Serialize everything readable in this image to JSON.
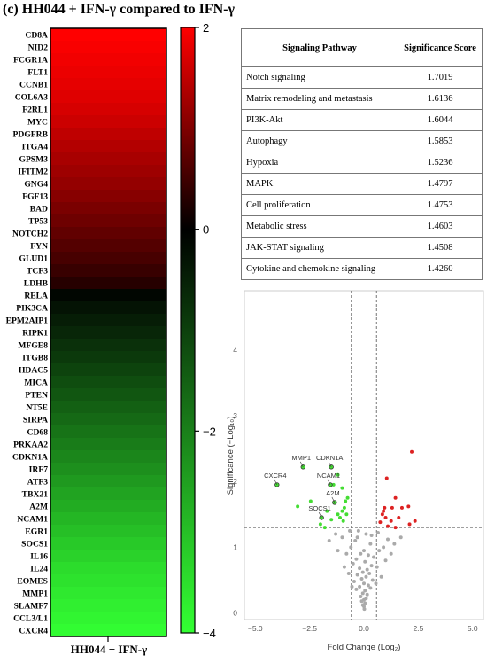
{
  "panel_title": "(c) HH044 + IFN-γ compared to IFN-γ",
  "chart_data": [
    {
      "type": "heatmap",
      "column_label": "HH044 + IFN-γ",
      "rows": [
        "CD8A",
        "NID2",
        "FCGR1A",
        "FLT1",
        "CCNB1",
        "COL6A3",
        "F2RL1",
        "MYC",
        "PDGFRB",
        "ITGA4",
        "GPSM3",
        "IFITM2",
        "GNG4",
        "FGF13",
        "BAD",
        "TP53",
        "NOTCH2",
        "FYN",
        "GLUD1",
        "TCF3",
        "LDHB",
        "RELA",
        "PIK3CA",
        "EPM2AIP1",
        "RIPK1",
        "MFGE8",
        "ITGB8",
        "HDAC5",
        "MICA",
        "PTEN",
        "NT5E",
        "SIRPA",
        "CD68",
        "PRKAA2",
        "CDKN1A",
        "IRF7",
        "ATF3",
        "TBX21",
        "A2M",
        "NCAM1",
        "EGR1",
        "SOCS1",
        "IL16",
        "IL24",
        "EOMES",
        "MMP1",
        "SLAMF7",
        "CCL3/L1",
        "CXCR4"
      ],
      "values": [
        2.0,
        1.95,
        1.9,
        1.85,
        1.8,
        1.75,
        1.68,
        1.6,
        1.5,
        1.4,
        1.32,
        1.24,
        1.16,
        1.06,
        0.96,
        0.86,
        0.76,
        0.66,
        0.56,
        0.44,
        0.3,
        -0.1,
        -0.3,
        -0.45,
        -0.6,
        -0.75,
        -0.9,
        -1.05,
        -1.2,
        -1.35,
        -1.5,
        -1.65,
        -1.8,
        -1.95,
        -2.1,
        -2.25,
        -2.4,
        -2.55,
        -2.7,
        -2.85,
        -3.0,
        -3.15,
        -3.3,
        -3.45,
        -3.55,
        -3.65,
        -3.75,
        -3.85,
        -3.95
      ],
      "colorbar": {
        "min": -4,
        "max": 2,
        "ticks": [
          2,
          0,
          -2,
          -4
        ],
        "low_color": "#33ff33",
        "mid_color": "#000000",
        "high_color": "#ff0000"
      }
    },
    {
      "type": "scatter",
      "xlabel": "Fold Change (Log₂)",
      "ylabel": "Significance (−Log₁₀)",
      "xlim": [
        -5.5,
        5.5
      ],
      "ylim": [
        -0.1,
        4.9
      ],
      "xticks": [
        -5.0,
        -2.5,
        0.0,
        2.5,
        5.0
      ],
      "yticks": [
        0,
        1,
        2,
        3,
        4
      ],
      "thresholds": {
        "x": [
          -0.58,
          0.58
        ],
        "y": 1.3
      },
      "colors": {
        "up": "#dd2222",
        "down": "#44dd33",
        "ns": "#aaaaaa"
      },
      "labeled_points": [
        {
          "label": "MMP1",
          "x": -2.8,
          "y": 2.22
        },
        {
          "label": "CDKN1A",
          "x": -1.5,
          "y": 2.22
        },
        {
          "label": "CXCR4",
          "x": -4.0,
          "y": 1.95
        },
        {
          "label": "NCAM1",
          "x": -1.55,
          "y": 1.95
        },
        {
          "label": "A2M",
          "x": -1.35,
          "y": 1.68
        },
        {
          "label": "SOCS1",
          "x": -1.95,
          "y": 1.45
        }
      ],
      "down": [
        [
          -3.05,
          1.62
        ],
        [
          -1.4,
          1.95
        ],
        [
          -1.2,
          2.1
        ],
        [
          -1.0,
          1.9
        ],
        [
          -0.9,
          1.6
        ],
        [
          -2.45,
          1.7
        ],
        [
          -1.7,
          1.55
        ],
        [
          -1.2,
          1.5
        ],
        [
          -1.0,
          1.55
        ],
        [
          -0.85,
          1.7
        ],
        [
          -2.0,
          1.35
        ],
        [
          -1.1,
          1.45
        ],
        [
          -0.95,
          1.4
        ],
        [
          -0.75,
          1.75
        ],
        [
          -1.5,
          1.42
        ],
        [
          -0.8,
          1.5
        ],
        [
          -1.8,
          1.3
        ]
      ],
      "up": [
        [
          2.2,
          2.45
        ],
        [
          1.05,
          2.05
        ],
        [
          0.95,
          1.6
        ],
        [
          1.45,
          1.75
        ],
        [
          1.75,
          1.6
        ],
        [
          2.05,
          1.62
        ],
        [
          0.85,
          1.5
        ],
        [
          1.0,
          1.45
        ],
        [
          1.25,
          1.4
        ],
        [
          0.75,
          1.38
        ],
        [
          1.1,
          1.32
        ],
        [
          1.6,
          1.45
        ],
        [
          2.35,
          1.4
        ],
        [
          2.1,
          1.35
        ],
        [
          1.45,
          1.3
        ],
        [
          0.9,
          1.55
        ],
        [
          1.3,
          1.6
        ]
      ],
      "ns": [
        [
          -0.25,
          1.25
        ],
        [
          0.1,
          1.2
        ],
        [
          -0.4,
          1.1
        ],
        [
          0.3,
          1.05
        ],
        [
          0.0,
          0.95
        ],
        [
          -0.15,
          0.9
        ],
        [
          0.2,
          0.88
        ],
        [
          0.45,
          0.85
        ],
        [
          -0.35,
          0.82
        ],
        [
          0.05,
          0.78
        ],
        [
          -0.5,
          0.75
        ],
        [
          0.35,
          0.72
        ],
        [
          0.6,
          0.7
        ],
        [
          -0.2,
          0.68
        ],
        [
          0.15,
          0.66
        ],
        [
          -0.05,
          0.62
        ],
        [
          0.25,
          0.6
        ],
        [
          -0.3,
          0.58
        ],
        [
          0.1,
          0.55
        ],
        [
          -0.1,
          0.52
        ],
        [
          0.4,
          0.5
        ],
        [
          -0.45,
          0.48
        ],
        [
          0.0,
          0.45
        ],
        [
          0.2,
          0.42
        ],
        [
          -0.2,
          0.4
        ],
        [
          0.3,
          0.38
        ],
        [
          -0.35,
          0.36
        ],
        [
          0.05,
          0.34
        ],
        [
          -0.05,
          0.3
        ],
        [
          0.15,
          0.28
        ],
        [
          -0.15,
          0.25
        ],
        [
          0.1,
          0.22
        ],
        [
          0.0,
          0.2
        ],
        [
          -0.1,
          0.18
        ],
        [
          0.05,
          0.15
        ],
        [
          -0.05,
          0.12
        ],
        [
          0.0,
          0.1
        ],
        [
          0.02,
          0.06
        ],
        [
          -0.8,
          0.9
        ],
        [
          0.9,
          1.0
        ],
        [
          -1.0,
          1.15
        ],
        [
          1.1,
          1.12
        ],
        [
          -0.7,
          0.6
        ],
        [
          0.8,
          0.55
        ],
        [
          -1.3,
          1.2
        ],
        [
          1.4,
          1.05
        ],
        [
          -0.6,
          1.0
        ],
        [
          0.7,
          0.95
        ],
        [
          -1.6,
          1.1
        ],
        [
          1.7,
          1.15
        ],
        [
          -0.9,
          0.7
        ],
        [
          1.0,
          0.8
        ],
        [
          -1.2,
          0.95
        ],
        [
          1.25,
          0.9
        ],
        [
          -0.55,
          0.4
        ],
        [
          0.55,
          0.45
        ],
        [
          -0.65,
          1.25
        ],
        [
          0.65,
          1.22
        ],
        [
          -0.3,
          1.15
        ],
        [
          0.35,
          1.18
        ]
      ]
    }
  ],
  "table": {
    "headers": [
      "Signaling Pathway",
      "Significance Score"
    ],
    "rows": [
      {
        "pathway": "Notch signaling",
        "score": "1.7019"
      },
      {
        "pathway": "Matrix remodeling and metastasis",
        "score": "1.6136"
      },
      {
        "pathway": "PI3K-Akt",
        "score": "1.6044"
      },
      {
        "pathway": "Autophagy",
        "score": "1.5853"
      },
      {
        "pathway": "Hypoxia",
        "score": "1.5236"
      },
      {
        "pathway": "MAPK",
        "score": "1.4797"
      },
      {
        "pathway": "Cell proliferation",
        "score": "1.4753"
      },
      {
        "pathway": "Metabolic stress",
        "score": "1.4603"
      },
      {
        "pathway": "JAK-STAT signaling",
        "score": "1.4508"
      },
      {
        "pathway": "Cytokine and chemokine signaling",
        "score": "1.4260"
      }
    ]
  }
}
